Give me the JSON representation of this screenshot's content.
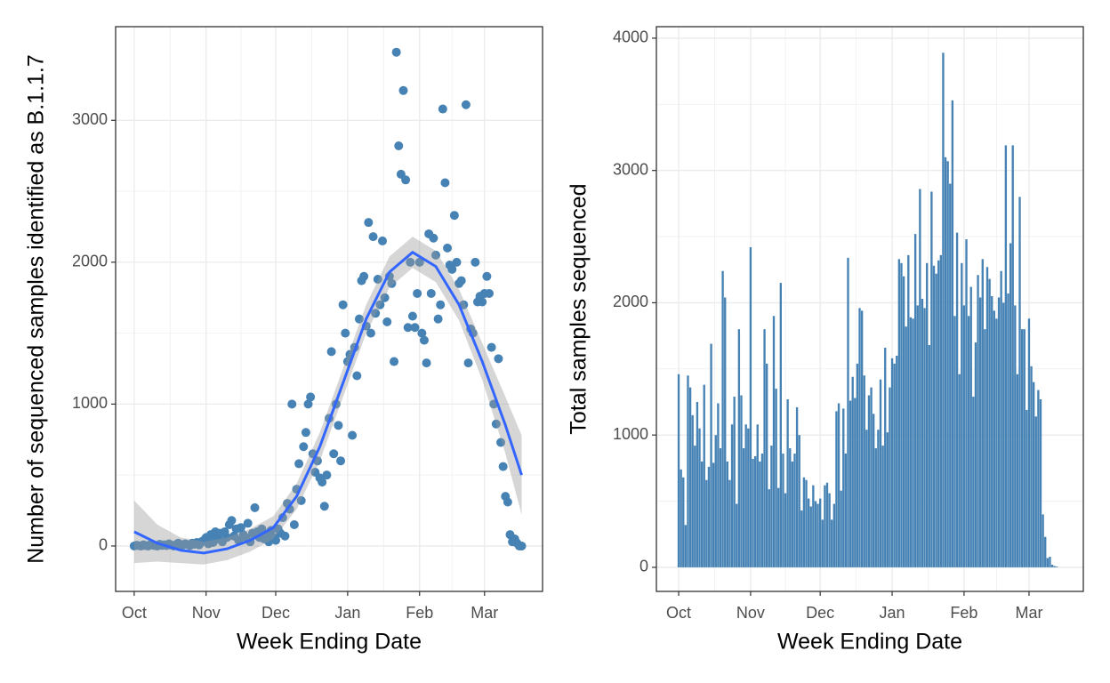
{
  "chart_data": [
    {
      "type": "scatter",
      "y_label": "Number of sequenced samples identified as B.1.1.7",
      "x_label": "Week Ending Date",
      "color": "#4682b4",
      "grid": true,
      "xlim": [
        -8,
        176
      ],
      "ylim": [
        -320,
        3660
      ],
      "xticks": [
        {
          "value": 0,
          "label": "Oct"
        },
        {
          "value": 31,
          "label": "Nov"
        },
        {
          "value": 61,
          "label": "Dec"
        },
        {
          "value": 92,
          "label": "Jan"
        },
        {
          "value": 123,
          "label": "Feb"
        },
        {
          "value": 151,
          "label": "Mar"
        }
      ],
      "yticks": [
        0,
        1000,
        2000,
        3000
      ],
      "x": [
        0,
        1,
        2,
        3,
        4,
        5,
        6,
        7,
        8,
        9,
        10,
        11,
        12,
        13,
        14,
        15,
        16,
        17,
        18,
        19,
        20,
        21,
        22,
        23,
        24,
        25,
        26,
        27,
        28,
        29,
        30,
        31,
        32,
        33,
        34,
        35,
        36,
        37,
        38,
        39,
        40,
        41,
        42,
        43,
        44,
        45,
        46,
        47,
        48,
        49,
        50,
        51,
        52,
        53,
        54,
        55,
        56,
        57,
        58,
        59,
        60,
        61,
        62,
        63,
        64,
        65,
        66,
        67,
        68,
        69,
        70,
        71,
        72,
        73,
        74,
        75,
        76,
        77,
        78,
        79,
        80,
        81,
        82,
        83,
        84,
        85,
        86,
        87,
        88,
        89,
        90,
        91,
        92,
        93,
        94,
        95,
        96,
        97,
        98,
        99,
        100,
        101,
        102,
        103,
        104,
        105,
        106,
        107,
        108,
        109,
        110,
        111,
        112,
        113,
        114,
        115,
        116,
        117,
        118,
        119,
        120,
        121,
        122,
        123,
        124,
        125,
        126,
        127,
        128,
        129,
        130,
        131,
        132,
        133,
        134,
        135,
        136,
        137,
        138,
        139,
        140,
        141,
        142,
        143,
        144,
        145,
        146,
        147,
        148,
        149,
        150,
        151,
        152,
        153,
        154,
        155,
        156,
        157,
        158,
        159,
        160,
        161,
        162,
        163,
        164,
        165,
        166,
        167
      ],
      "values": [
        0,
        5,
        2,
        0,
        8,
        3,
        0,
        10,
        5,
        2,
        0,
        12,
        4,
        8,
        3,
        15,
        6,
        0,
        10,
        20,
        5,
        8,
        15,
        10,
        3,
        20,
        12,
        25,
        8,
        30,
        40,
        60,
        15,
        80,
        25,
        100,
        50,
        90,
        30,
        100,
        60,
        150,
        180,
        70,
        120,
        40,
        130,
        80,
        60,
        160,
        30,
        90,
        270,
        100,
        60,
        120,
        50,
        80,
        30,
        110,
        60,
        40,
        120,
        90,
        200,
        70,
        300,
        260,
        1000,
        150,
        400,
        580,
        320,
        700,
        800,
        1000,
        1050,
        650,
        520,
        600,
        480,
        450,
        280,
        500,
        900,
        1370,
        650,
        1000,
        850,
        600,
        1700,
        1500,
        1300,
        1350,
        780,
        1400,
        1200,
        1600,
        1870,
        1900,
        1550,
        2280,
        1500,
        2180,
        1640,
        1880,
        1700,
        2150,
        1750,
        1580,
        1900,
        1850,
        1300,
        3480,
        2820,
        2620,
        3210,
        2580,
        1540,
        2000,
        1620,
        1540,
        1780,
        2000,
        1500,
        1450,
        1290,
        2200,
        1780,
        2170,
        2050,
        1600,
        1700,
        3080,
        2560,
        2100,
        1980,
        1950,
        2330,
        2000,
        1850,
        1870,
        1700,
        3110,
        1290,
        1530,
        1500,
        2000,
        1720,
        1760,
        1720,
        1780,
        1900,
        1780,
        1400,
        1000,
        860,
        1320,
        730,
        560,
        350,
        310,
        80,
        30,
        50,
        20,
        0,
        0
      ],
      "smooth": {
        "color": "#3366ff",
        "band_color": "#999999",
        "x": [
          0,
          10,
          20,
          30,
          40,
          50,
          60,
          70,
          80,
          90,
          100,
          110,
          120,
          130,
          140,
          150,
          160,
          167
        ],
        "values": [
          100,
          20,
          -30,
          -50,
          -20,
          40,
          130,
          350,
          700,
          1150,
          1600,
          1930,
          2070,
          1970,
          1700,
          1300,
          850,
          500
        ],
        "lower": [
          -120,
          -110,
          -120,
          -130,
          -100,
          -40,
          50,
          260,
          600,
          1050,
          1500,
          1820,
          1960,
          1860,
          1590,
          1170,
          650,
          220
        ],
        "upper": [
          320,
          150,
          60,
          30,
          60,
          120,
          210,
          440,
          800,
          1250,
          1700,
          2040,
          2180,
          2080,
          1810,
          1430,
          1050,
          780
        ]
      }
    },
    {
      "type": "bar",
      "y_label": "Total samples sequenced",
      "x_label": "Week Ending Date",
      "color": "#4682b4",
      "grid": true,
      "xlim": [
        -9.6,
        174.4
      ],
      "ylim": [
        -182,
        4087
      ],
      "xticks": [
        {
          "value": 0,
          "label": "Oct"
        },
        {
          "value": 31,
          "label": "Nov"
        },
        {
          "value": 61,
          "label": "Dec"
        },
        {
          "value": 92,
          "label": "Jan"
        },
        {
          "value": 123,
          "label": "Feb"
        },
        {
          "value": 151,
          "label": "Mar"
        }
      ],
      "yticks": [
        0,
        1000,
        2000,
        3000,
        4000
      ],
      "x": [
        0,
        1,
        2,
        3,
        4,
        5,
        6,
        7,
        8,
        9,
        10,
        11,
        12,
        13,
        14,
        15,
        16,
        17,
        18,
        19,
        20,
        21,
        22,
        23,
        24,
        25,
        26,
        27,
        28,
        29,
        30,
        31,
        32,
        33,
        34,
        35,
        36,
        37,
        38,
        39,
        40,
        41,
        42,
        43,
        44,
        45,
        46,
        47,
        48,
        49,
        50,
        51,
        52,
        53,
        54,
        55,
        56,
        57,
        58,
        59,
        60,
        61,
        62,
        63,
        64,
        65,
        66,
        67,
        68,
        69,
        70,
        71,
        72,
        73,
        74,
        75,
        76,
        77,
        78,
        79,
        80,
        81,
        82,
        83,
        84,
        85,
        86,
        87,
        88,
        89,
        90,
        91,
        92,
        93,
        94,
        95,
        96,
        97,
        98,
        99,
        100,
        101,
        102,
        103,
        104,
        105,
        106,
        107,
        108,
        109,
        110,
        111,
        112,
        113,
        114,
        115,
        116,
        117,
        118,
        119,
        120,
        121,
        122,
        123,
        124,
        125,
        126,
        127,
        128,
        129,
        130,
        131,
        132,
        133,
        134,
        135,
        136,
        137,
        138,
        139,
        140,
        141,
        142,
        143,
        144,
        145,
        146,
        147,
        148,
        149,
        150,
        151,
        152,
        153,
        154,
        155,
        156,
        157,
        158,
        159,
        160,
        161,
        162,
        163,
        164,
        165
      ],
      "values": [
        1460,
        740,
        680,
        320,
        1450,
        1360,
        1150,
        920,
        1250,
        1050,
        800,
        1380,
        660,
        760,
        1690,
        790,
        1000,
        1240,
        900,
        2240,
        2040,
        800,
        660,
        1080,
        1290,
        480,
        1800,
        1300,
        900,
        1080,
        1050,
        2420,
        820,
        840,
        1080,
        800,
        860,
        1800,
        1540,
        590,
        920,
        1900,
        1350,
        600,
        2150,
        860,
        560,
        1270,
        900,
        800,
        860,
        1210,
        1000,
        430,
        680,
        660,
        520,
        460,
        620,
        500,
        480,
        520,
        360,
        620,
        640,
        560,
        360,
        480,
        1180,
        1240,
        580,
        1200,
        860,
        2340,
        1260,
        1440,
        1280,
        1540,
        1960,
        1940,
        1450,
        1040,
        1300,
        1360,
        1160,
        900,
        1040,
        1420,
        920,
        1660,
        1020,
        1360,
        1580,
        1540,
        1600,
        2330,
        2300,
        2200,
        1820,
        2360,
        1890,
        1880,
        2520,
        1980,
        2860,
        2030,
        1960,
        2300,
        1680,
        2840,
        2280,
        2220,
        2320,
        2360,
        3890,
        3100,
        3070,
        2900,
        3530,
        1900,
        2530,
        1460,
        2300,
        1980,
        2480,
        1900,
        2120,
        1290,
        1700,
        2210,
        2040,
        2330,
        1800,
        2270,
        2180,
        2050,
        1940,
        1880,
        2040,
        2240,
        2000,
        3190,
        2070,
        2450,
        3190,
        1980,
        1460,
        2800,
        1800,
        1800,
        1190,
        1880,
        1520,
        1400,
        1140,
        1340,
        1270,
        400,
        230,
        70,
        80,
        20,
        10,
        5,
        0,
        0
      ]
    }
  ]
}
